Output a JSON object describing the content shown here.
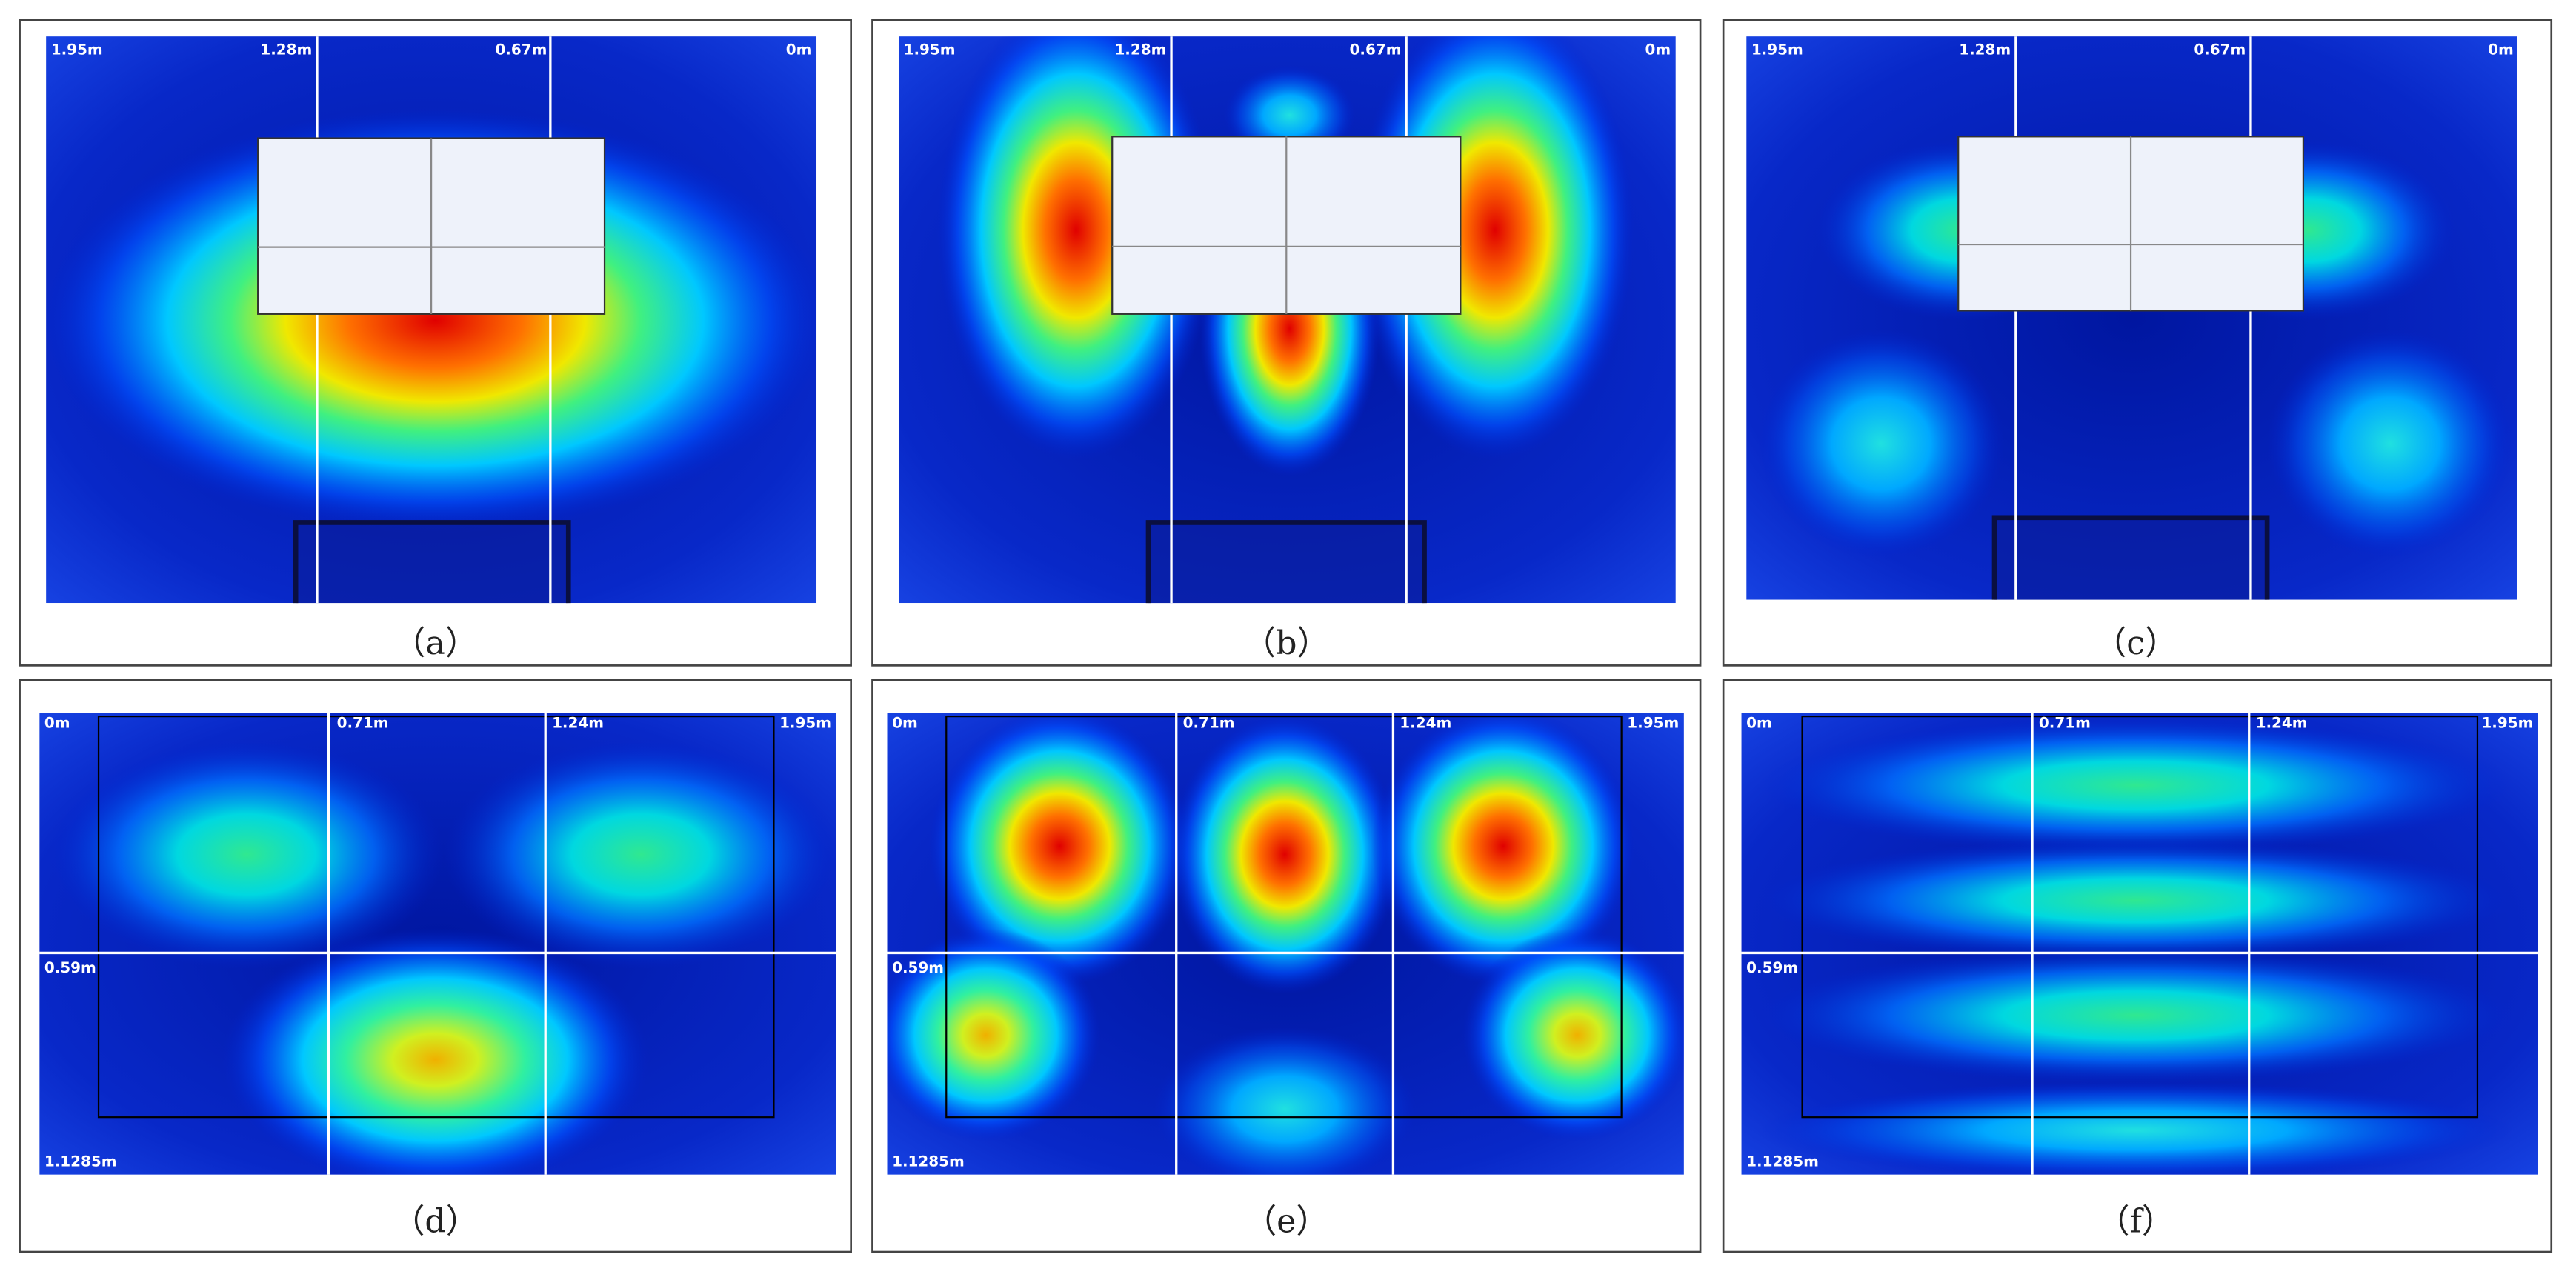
{
  "panels": [
    {
      "caption": "（a）",
      "labels": [
        "1.95m",
        "1.28m",
        "0.67m",
        "0m"
      ]
    },
    {
      "caption": "（b）",
      "labels": [
        "1.95m",
        "1.28m",
        "0.67m",
        "0m"
      ]
    },
    {
      "caption": "（c）",
      "labels": [
        "1.95m",
        "1.28m",
        "0.67m",
        "0m"
      ]
    },
    {
      "caption": "（d）",
      "labels": [
        "0m",
        "0.71m",
        "1.24m",
        "1.95m",
        "0.59m",
        "1.1285m"
      ]
    },
    {
      "caption": "（e）",
      "labels": [
        "0m",
        "0.71m",
        "1.24m",
        "1.95m",
        "0.59m",
        "1.1285m"
      ]
    },
    {
      "caption": "（f）",
      "labels": [
        "0m",
        "0.71m",
        "1.24m",
        "1.95m",
        "0.59m",
        "1.1285m"
      ]
    }
  ]
}
